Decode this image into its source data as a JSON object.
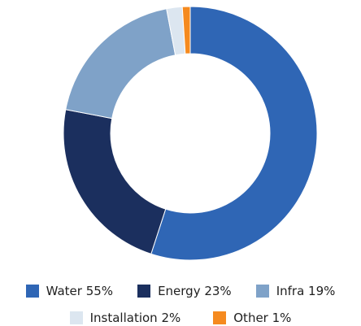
{
  "chart_data": {
    "type": "pie",
    "title": "",
    "donut": true,
    "slices": [
      {
        "label": "Water",
        "value": 55,
        "color": "#2f66b5"
      },
      {
        "label": "Energy",
        "value": 23,
        "color": "#1b2f5e"
      },
      {
        "label": "Infra",
        "value": 19,
        "color": "#7fa2c8"
      },
      {
        "label": "Installation",
        "value": 2,
        "color": "#dce6f0"
      },
      {
        "label": "Other",
        "value": 1,
        "color": "#f58a1f"
      }
    ],
    "legend_position": "bottom"
  },
  "legend": {
    "items": [
      {
        "text": "Water 55%",
        "color": "#2f66b5"
      },
      {
        "text": "Energy 23%",
        "color": "#1b2f5e"
      },
      {
        "text": "Infra 19%",
        "color": "#7fa2c8"
      },
      {
        "text": "Installation 2%",
        "color": "#dce6f0"
      },
      {
        "text": "Other 1%",
        "color": "#f58a1f"
      }
    ]
  }
}
